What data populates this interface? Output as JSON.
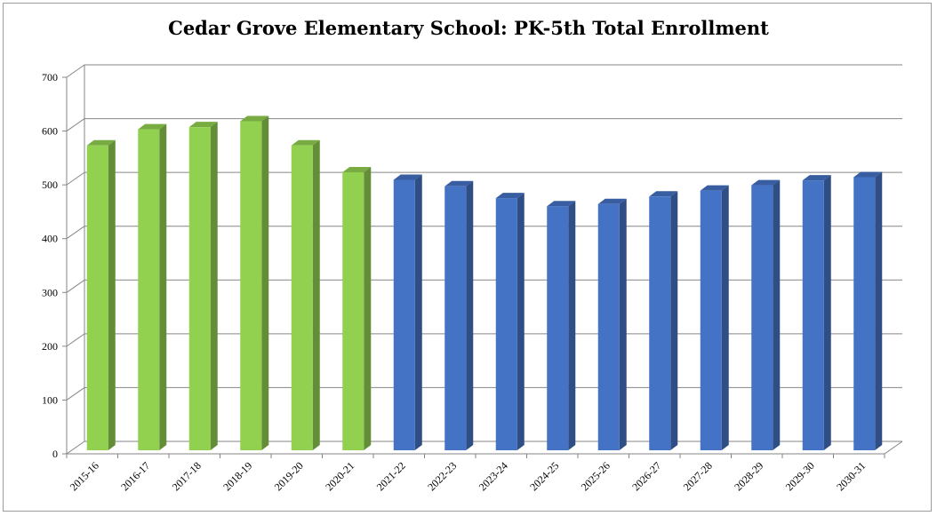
{
  "chart_data": {
    "type": "bar",
    "title": "Cedar Grove Elementary School: PK-5th Total Enrollment",
    "xlabel": "",
    "ylabel": "",
    "ylim": [
      0,
      700
    ],
    "yticks": [
      0,
      100,
      200,
      300,
      400,
      500,
      600,
      700
    ],
    "grid": true,
    "legend": "none",
    "categories": [
      "2015-16",
      "2016-17",
      "2017-18",
      "2018-19",
      "2019-20",
      "2020-21",
      "2021-22",
      "2022-23",
      "2023-24",
      "2024-25",
      "2025-26",
      "2026-27",
      "2027-28",
      "2028-29",
      "2029-30",
      "2030-31"
    ],
    "values": [
      570,
      600,
      604,
      615,
      570,
      520,
      506,
      494,
      472,
      457,
      461,
      475,
      486,
      496,
      505,
      511
    ],
    "colors": [
      "#92d050",
      "#92d050",
      "#92d050",
      "#92d050",
      "#92d050",
      "#92d050",
      "#4472c4",
      "#4472c4",
      "#4472c4",
      "#4472c4",
      "#4472c4",
      "#4472c4",
      "#4472c4",
      "#4472c4",
      "#4472c4",
      "#4472c4"
    ]
  }
}
